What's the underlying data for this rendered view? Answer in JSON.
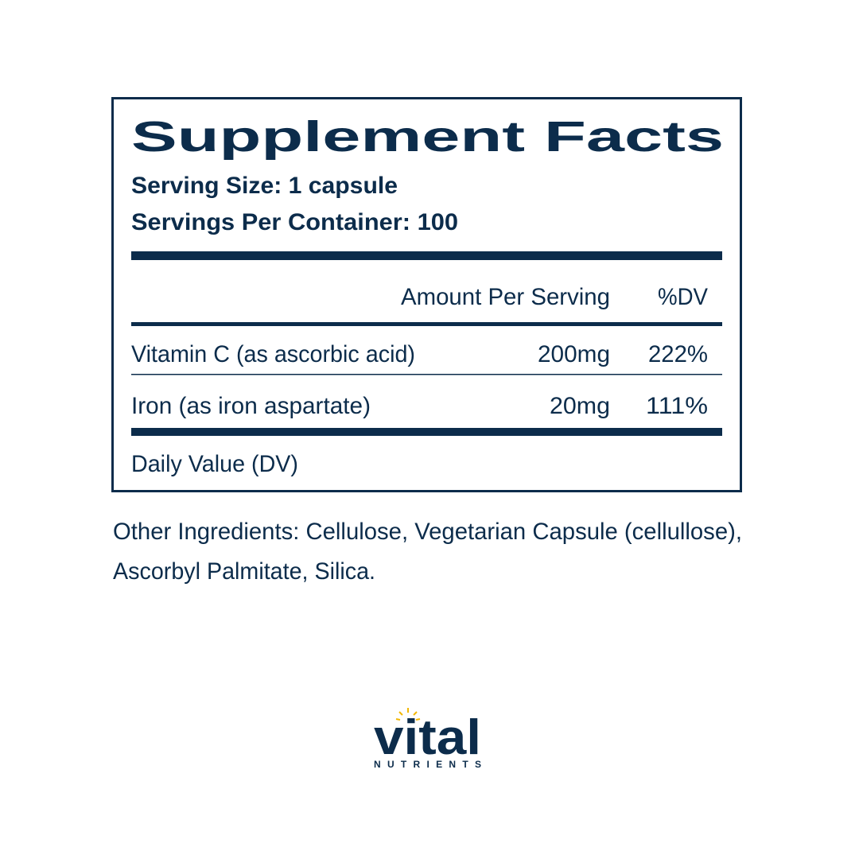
{
  "header": {
    "title": "Supplement Facts",
    "serving_size": "Serving Size: 1 capsule",
    "servings_per_container": "Servings Per Container: 100"
  },
  "table": {
    "columns": [
      "Amount Per Serving",
      "%DV"
    ],
    "rows": [
      [
        "Vitamin C (as ascorbic acid)",
        "200mg",
        "222%"
      ],
      [
        "Iron (as iron aspartate)",
        "20mg",
        "111%"
      ]
    ]
  },
  "footnote": "Daily Value (DV)",
  "other_ingredients": [
    "Other Ingredients: Cellulose, Vegetarian Capsule (cellullose),",
    "Ascorbyl Palmitate, Silica."
  ],
  "brand": {
    "name": "vital",
    "tagline": "NUTRIENTS"
  }
}
